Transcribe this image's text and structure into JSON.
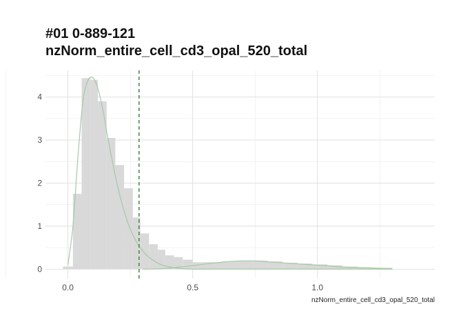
{
  "chart_data": {
    "type": "histogram",
    "title_lines": [
      "#01 0-889-121",
      "nzNorm_entire_cell_cd3_opal_520_total"
    ],
    "xlabel": "nzNorm_entire_cell_cd3_opal_520_total",
    "ylabel": "",
    "xlim": [
      -0.09,
      1.47
    ],
    "ylim": [
      -0.22,
      4.62
    ],
    "x_ticks": [
      0.0,
      0.5,
      1.0
    ],
    "x_tick_labels": [
      "0.0",
      "0.5",
      "1.0"
    ],
    "y_ticks": [
      0,
      1,
      2,
      3,
      4
    ],
    "y_tick_labels": [
      "0",
      "1",
      "2",
      "3",
      "4"
    ],
    "grid": true,
    "threshold_line": {
      "x": 0.285,
      "style": "dashed",
      "color": "#2e7d32"
    },
    "histogram": {
      "color": "#d9d9d9",
      "bins": [
        {
          "x0": -0.02,
          "x1": 0.02,
          "y": 0.06
        },
        {
          "x0": 0.02,
          "x1": 0.055,
          "y": 1.75
        },
        {
          "x0": 0.055,
          "x1": 0.09,
          "y": 4.44
        },
        {
          "x0": 0.09,
          "x1": 0.12,
          "y": 4.4
        },
        {
          "x0": 0.12,
          "x1": 0.155,
          "y": 3.9
        },
        {
          "x0": 0.155,
          "x1": 0.19,
          "y": 3.05
        },
        {
          "x0": 0.19,
          "x1": 0.225,
          "y": 2.42
        },
        {
          "x0": 0.225,
          "x1": 0.26,
          "y": 1.88
        },
        {
          "x0": 0.26,
          "x1": 0.29,
          "y": 1.2
        },
        {
          "x0": 0.29,
          "x1": 0.325,
          "y": 0.83
        },
        {
          "x0": 0.325,
          "x1": 0.36,
          "y": 0.58
        },
        {
          "x0": 0.36,
          "x1": 0.39,
          "y": 0.45
        },
        {
          "x0": 0.39,
          "x1": 0.425,
          "y": 0.32
        },
        {
          "x0": 0.425,
          "x1": 0.46,
          "y": 0.28
        },
        {
          "x0": 0.46,
          "x1": 0.5,
          "y": 0.22
        },
        {
          "x0": 0.5,
          "x1": 0.56,
          "y": 0.16
        },
        {
          "x0": 0.56,
          "x1": 0.62,
          "y": 0.16
        },
        {
          "x0": 0.62,
          "x1": 0.68,
          "y": 0.18
        },
        {
          "x0": 0.68,
          "x1": 0.74,
          "y": 0.2
        },
        {
          "x0": 0.74,
          "x1": 0.8,
          "y": 0.2
        },
        {
          "x0": 0.8,
          "x1": 0.86,
          "y": 0.18
        },
        {
          "x0": 0.86,
          "x1": 0.92,
          "y": 0.15
        },
        {
          "x0": 0.92,
          "x1": 0.98,
          "y": 0.13
        },
        {
          "x0": 0.98,
          "x1": 1.04,
          "y": 0.11
        },
        {
          "x0": 1.04,
          "x1": 1.1,
          "y": 0.09
        },
        {
          "x0": 1.1,
          "x1": 1.16,
          "y": 0.06
        },
        {
          "x0": 1.16,
          "x1": 1.22,
          "y": 0.04
        },
        {
          "x0": 1.22,
          "x1": 1.3,
          "y": 0.03
        }
      ]
    },
    "density_curves": [
      {
        "color": "#a5c9a5",
        "points": [
          [
            0.0,
            0.1
          ],
          [
            0.02,
            1.0
          ],
          [
            0.04,
            2.6
          ],
          [
            0.06,
            3.9
          ],
          [
            0.08,
            4.38
          ],
          [
            0.1,
            4.45
          ],
          [
            0.12,
            4.2
          ],
          [
            0.14,
            3.7
          ],
          [
            0.16,
            3.05
          ],
          [
            0.18,
            2.45
          ],
          [
            0.2,
            1.9
          ],
          [
            0.22,
            1.45
          ],
          [
            0.24,
            1.08
          ],
          [
            0.26,
            0.8
          ],
          [
            0.28,
            0.58
          ],
          [
            0.3,
            0.42
          ],
          [
            0.32,
            0.3
          ],
          [
            0.34,
            0.21
          ],
          [
            0.36,
            0.14
          ],
          [
            0.38,
            0.09
          ],
          [
            0.4,
            0.06
          ],
          [
            0.44,
            0.02
          ],
          [
            0.5,
            0.0
          ],
          [
            0.6,
            0.0
          ],
          [
            1.3,
            0.0
          ]
        ]
      },
      {
        "color": "#a5c9a5",
        "points": [
          [
            0.3,
            0.0
          ],
          [
            0.35,
            0.005
          ],
          [
            0.4,
            0.02
          ],
          [
            0.45,
            0.05
          ],
          [
            0.5,
            0.08
          ],
          [
            0.55,
            0.12
          ],
          [
            0.6,
            0.15
          ],
          [
            0.65,
            0.18
          ],
          [
            0.7,
            0.19
          ],
          [
            0.75,
            0.19
          ],
          [
            0.8,
            0.17
          ],
          [
            0.85,
            0.15
          ],
          [
            0.9,
            0.13
          ],
          [
            0.95,
            0.11
          ],
          [
            1.0,
            0.09
          ],
          [
            1.05,
            0.07
          ],
          [
            1.1,
            0.05
          ],
          [
            1.15,
            0.04
          ],
          [
            1.2,
            0.03
          ],
          [
            1.25,
            0.02
          ],
          [
            1.3,
            0.01
          ]
        ]
      }
    ]
  }
}
